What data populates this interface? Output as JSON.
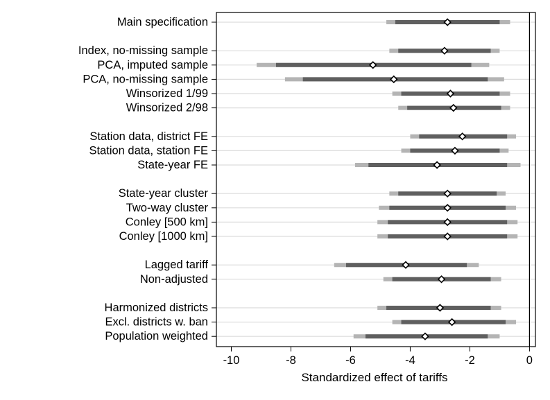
{
  "chart_data": {
    "type": "coefficient-plot",
    "title": "",
    "xlabel": "Standardized effect of tariffs",
    "ylabel": "",
    "xlim": [
      -10.5,
      0.2
    ],
    "xticks": [
      -10,
      -8,
      -6,
      -4,
      -2,
      0
    ],
    "xtick_labels": [
      "-10",
      "-8",
      "-6",
      "-4",
      "-2",
      "0"
    ],
    "reference_line_x": 0,
    "grid": "horizontal",
    "groups": [
      {
        "rows": [
          {
            "label": "Main specification",
            "estimate": -2.75,
            "ci_inner": [
              -4.5,
              -1.0
            ],
            "ci_outer": [
              -4.8,
              -0.65
            ]
          }
        ]
      },
      {
        "rows": [
          {
            "label": "Index, no-missing sample",
            "estimate": -2.85,
            "ci_inner": [
              -4.4,
              -1.3
            ],
            "ci_outer": [
              -4.7,
              -1.0
            ]
          },
          {
            "label": "PCA, imputed sample",
            "estimate": -5.25,
            "ci_inner": [
              -8.5,
              -1.95
            ],
            "ci_outer": [
              -9.15,
              -1.35
            ]
          },
          {
            "label": "PCA, no-missing sample",
            "estimate": -4.55,
            "ci_inner": [
              -7.6,
              -1.4
            ],
            "ci_outer": [
              -8.2,
              -0.85
            ]
          },
          {
            "label": "Winsorized 1/99",
            "estimate": -2.65,
            "ci_inner": [
              -4.3,
              -1.0
            ],
            "ci_outer": [
              -4.6,
              -0.65
            ]
          },
          {
            "label": "Winsorized 2/98",
            "estimate": -2.55,
            "ci_inner": [
              -4.1,
              -0.95
            ],
            "ci_outer": [
              -4.4,
              -0.65
            ]
          }
        ]
      },
      {
        "rows": [
          {
            "label": "Station data, district FE",
            "estimate": -2.25,
            "ci_inner": [
              -3.7,
              -0.75
            ],
            "ci_outer": [
              -4.0,
              -0.45
            ]
          },
          {
            "label": "Station data, station FE",
            "estimate": -2.5,
            "ci_inner": [
              -4.0,
              -1.0
            ],
            "ci_outer": [
              -4.3,
              -0.7
            ]
          },
          {
            "label": "State-year FE",
            "estimate": -3.1,
            "ci_inner": [
              -5.4,
              -0.75
            ],
            "ci_outer": [
              -5.85,
              -0.3
            ]
          }
        ]
      },
      {
        "rows": [
          {
            "label": "State-year cluster",
            "estimate": -2.75,
            "ci_inner": [
              -4.4,
              -1.1
            ],
            "ci_outer": [
              -4.7,
              -0.8
            ]
          },
          {
            "label": "Two-way cluster",
            "estimate": -2.75,
            "ci_inner": [
              -4.7,
              -0.8
            ],
            "ci_outer": [
              -5.05,
              -0.45
            ]
          },
          {
            "label": "Conley [500 km]",
            "estimate": -2.75,
            "ci_inner": [
              -4.75,
              -0.75
            ],
            "ci_outer": [
              -5.1,
              -0.4
            ]
          },
          {
            "label": "Conley [1000 km]",
            "estimate": -2.75,
            "ci_inner": [
              -4.75,
              -0.75
            ],
            "ci_outer": [
              -5.1,
              -0.4
            ]
          }
        ]
      },
      {
        "rows": [
          {
            "label": "Lagged tariff",
            "estimate": -4.15,
            "ci_inner": [
              -6.15,
              -2.1
            ],
            "ci_outer": [
              -6.55,
              -1.7
            ]
          },
          {
            "label": "Non-adjusted",
            "estimate": -2.95,
            "ci_inner": [
              -4.6,
              -1.3
            ],
            "ci_outer": [
              -4.9,
              -0.95
            ]
          }
        ]
      },
      {
        "rows": [
          {
            "label": "Harmonized districts",
            "estimate": -3.0,
            "ci_inner": [
              -4.8,
              -1.3
            ],
            "ci_outer": [
              -5.1,
              -0.95
            ]
          },
          {
            "label": "Excl. districts w. ban",
            "estimate": -2.6,
            "ci_inner": [
              -4.3,
              -0.8
            ],
            "ci_outer": [
              -4.6,
              -0.45
            ]
          },
          {
            "label": "Population weighted",
            "estimate": -3.5,
            "ci_inner": [
              -5.5,
              -1.4
            ],
            "ci_outer": [
              -5.9,
              -1.0
            ]
          }
        ]
      }
    ]
  },
  "colors": {
    "background": "#ffffff",
    "gridline": "#dcdcdc",
    "ci_outer": "#b4b4b4",
    "ci_inner": "#5f5f5f",
    "marker_fill": "#ffffff",
    "marker_stroke": "#000000",
    "axis": "#000000"
  }
}
